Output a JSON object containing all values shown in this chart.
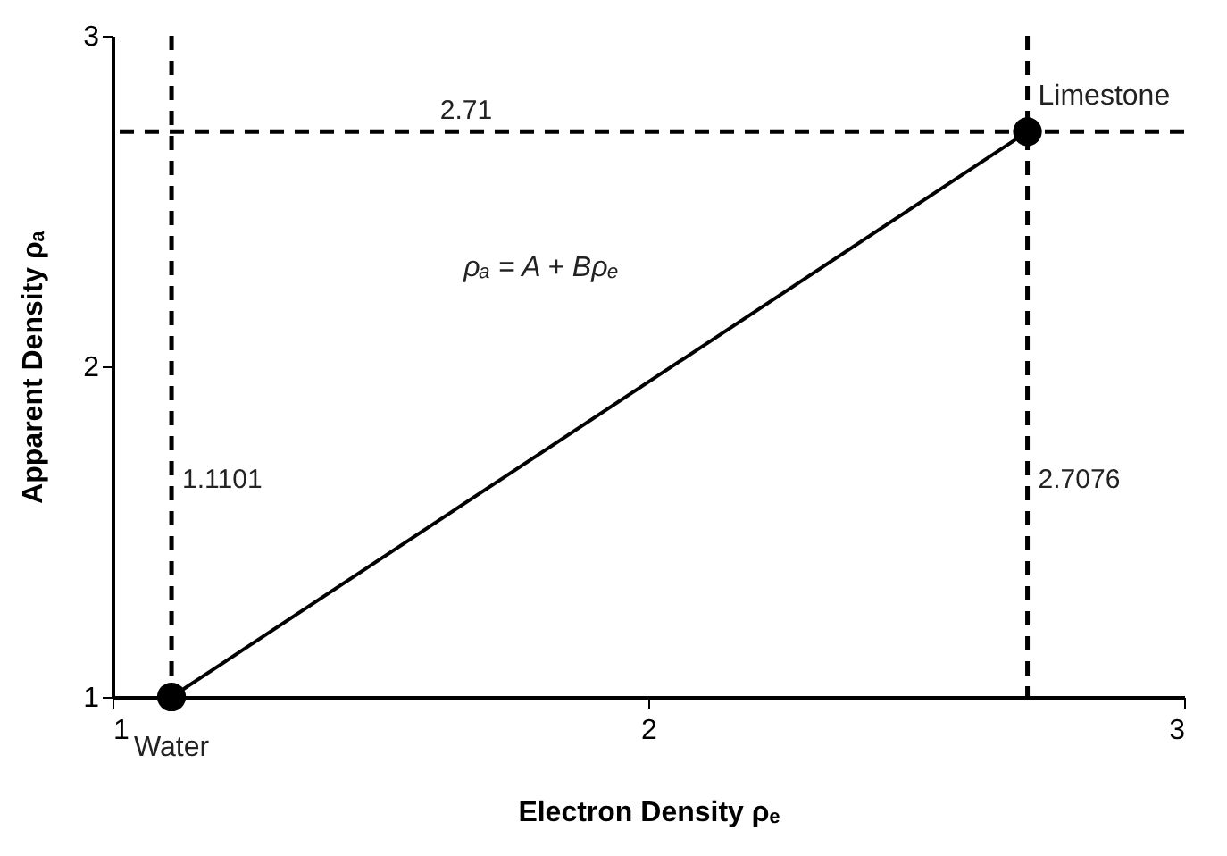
{
  "chart_data": {
    "type": "line",
    "xlabel": "Electron Density ρₑ",
    "ylabel": "Apparent Density ρₐ",
    "x": [
      1.1101,
      2.7076
    ],
    "series": [
      {
        "color": "#000000",
        "values": [
          1,
          2.71
        ]
      }
    ],
    "xlim": [
      1,
      3
    ],
    "ylim": [
      1,
      3
    ],
    "xticks": [
      1,
      2,
      3
    ],
    "yticks": [
      1,
      2,
      3
    ],
    "marker": "circle",
    "grid": false,
    "ref_lines": [
      {
        "axis": "y",
        "value": 2.71,
        "label": "2.71",
        "line_style": "dashed"
      },
      {
        "axis": "x",
        "value": 2.7076,
        "label": "2.7076",
        "line_style": "dashed"
      },
      {
        "axis": "x",
        "value": 1.1101,
        "label": "1.1101",
        "line_style": "dashed"
      }
    ],
    "annotations": [
      {
        "text": "Water",
        "x": 1.1101,
        "y": 1
      },
      {
        "text": "Limestone",
        "x": 2.7076,
        "y": 2.71
      },
      "ρₐ = A + Bρₑ"
    ]
  }
}
